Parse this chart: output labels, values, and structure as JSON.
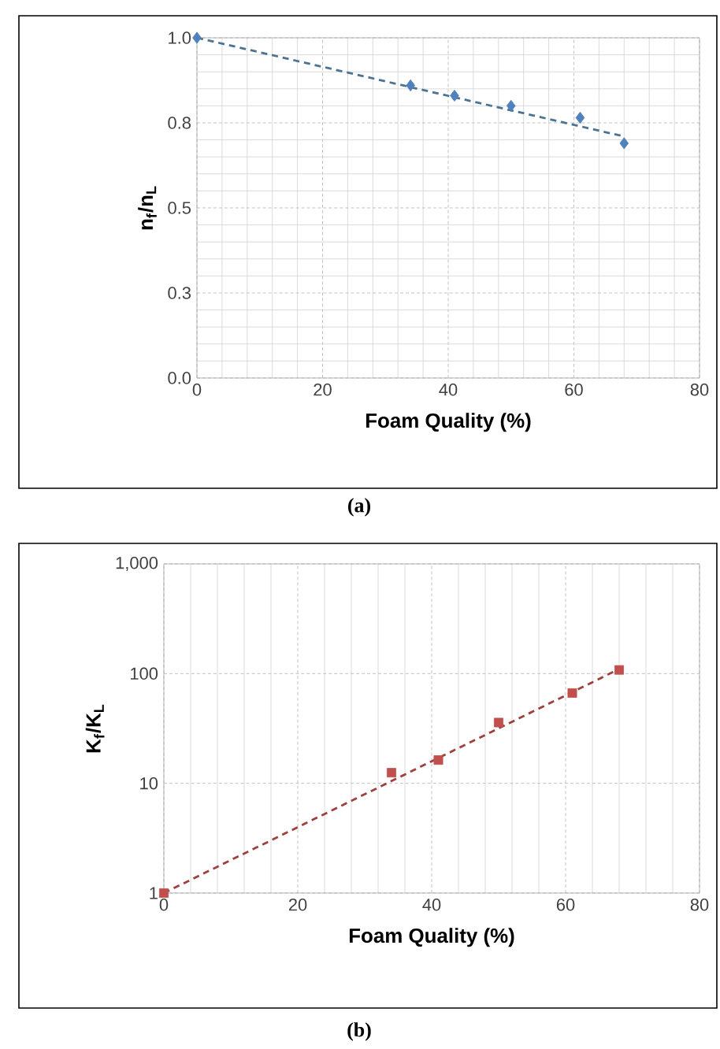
{
  "chart_data": [
    {
      "type": "scatter",
      "xlabel": "Foam Quality (%)",
      "ylabel": "n$_{f}$/n$_{L}$",
      "xlim": [
        0,
        80
      ],
      "xticks": [
        0,
        20,
        40,
        60,
        80
      ],
      "ylim": [
        0,
        1
      ],
      "yticks": [
        {
          "value": 0,
          "label": "0.0"
        },
        {
          "value": 0.25,
          "label": "0.3"
        },
        {
          "value": 0.5,
          "label": "0.5"
        },
        {
          "value": 0.75,
          "label": "0.8"
        },
        {
          "value": 1,
          "label": "1.0"
        }
      ],
      "grid": true,
      "marker": "diamond",
      "annotations": [
        "(a)"
      ],
      "series": [
        {
          "color": "#4f81bd",
          "x": [
            0,
            34,
            41,
            50,
            61,
            68
          ],
          "values": [
            1.0,
            0.86,
            0.83,
            0.8,
            0.765,
            0.69
          ]
        },
        {
          "type": "line",
          "marker": "none",
          "line_style": "dashed",
          "color": "#4a7394",
          "x": [
            0,
            68
          ],
          "values": [
            1.0,
            0.71
          ]
        }
      ]
    },
    {
      "type": "scatter",
      "xlabel": "Foam Quality (%)",
      "ylabel": "K$_{f}$/K$_{L}$",
      "xlim": [
        0,
        80
      ],
      "xticks": [
        0,
        20,
        40,
        60,
        80
      ],
      "ylim": [
        1,
        1000
      ],
      "yticks": [
        1,
        10,
        100,
        {
          "value": 1000,
          "label": "1,000"
        }
      ],
      "log": "y",
      "grid": true,
      "marker": "square",
      "annotations": [
        "(b)"
      ],
      "series": [
        {
          "color": "#c0504d",
          "x": [
            0,
            34,
            41,
            50,
            61,
            68
          ],
          "values": [
            1,
            12.5,
            16.3,
            35.8,
            66.5,
            108
          ]
        },
        {
          "type": "line",
          "marker": "none",
          "line_style": "dashed",
          "color": "#a0403d",
          "x": [
            0,
            68
          ],
          "values": [
            1,
            110
          ]
        }
      ]
    }
  ]
}
